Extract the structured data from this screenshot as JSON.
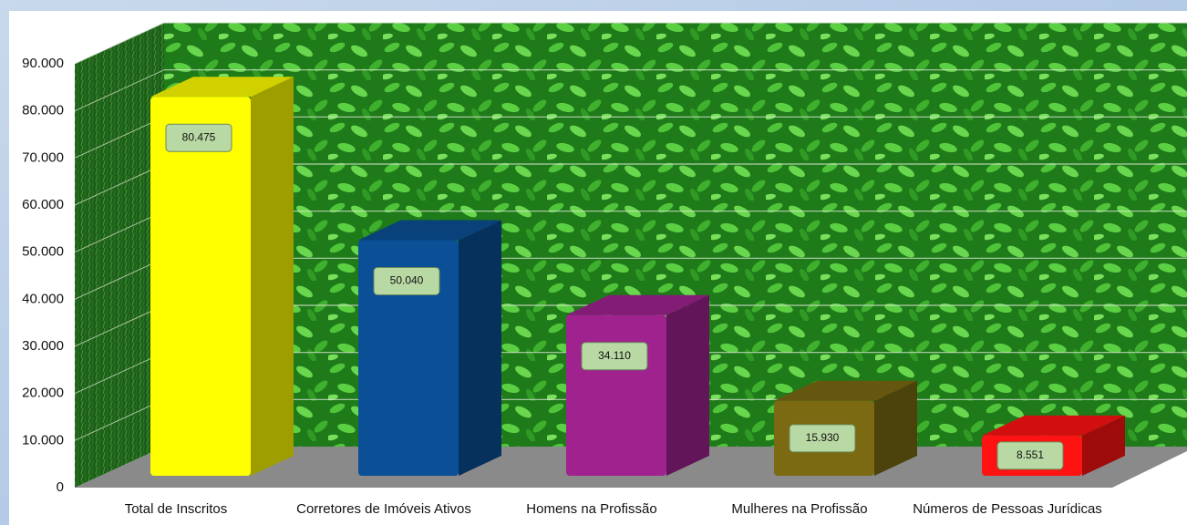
{
  "chart_data": {
    "type": "bar3d",
    "categories": [
      "Total de Inscritos",
      "Corretores de Imóveis Ativos",
      "Homens na Profissão",
      "Mulheres na Profissão",
      "Números de Pessoas Jurídicas"
    ],
    "values": [
      80475,
      50040,
      34110,
      15930,
      8551
    ],
    "value_labels": [
      "80.475",
      "50.040",
      "34.110",
      "15.930",
      "8.551"
    ],
    "colors": [
      "#ffff00",
      "#0b4f96",
      "#a0228f",
      "#7b6a12",
      "#ff1212"
    ],
    "ylim": [
      0,
      90000
    ],
    "yticks": [
      0,
      {
        "value": 10000,
        "label": "10.000"
      },
      {
        "value": 20000,
        "label": "20.000"
      },
      {
        "value": 30000,
        "label": "30.000"
      },
      {
        "value": 40000,
        "label": "40.000"
      },
      {
        "value": 50000,
        "label": "50.000"
      },
      {
        "value": 60000,
        "label": "60.000"
      },
      {
        "value": 70000,
        "label": "70.000"
      },
      {
        "value": 80000,
        "label": "80.000"
      },
      {
        "value": 90000,
        "label": "90.000"
      }
    ],
    "grid": true
  }
}
